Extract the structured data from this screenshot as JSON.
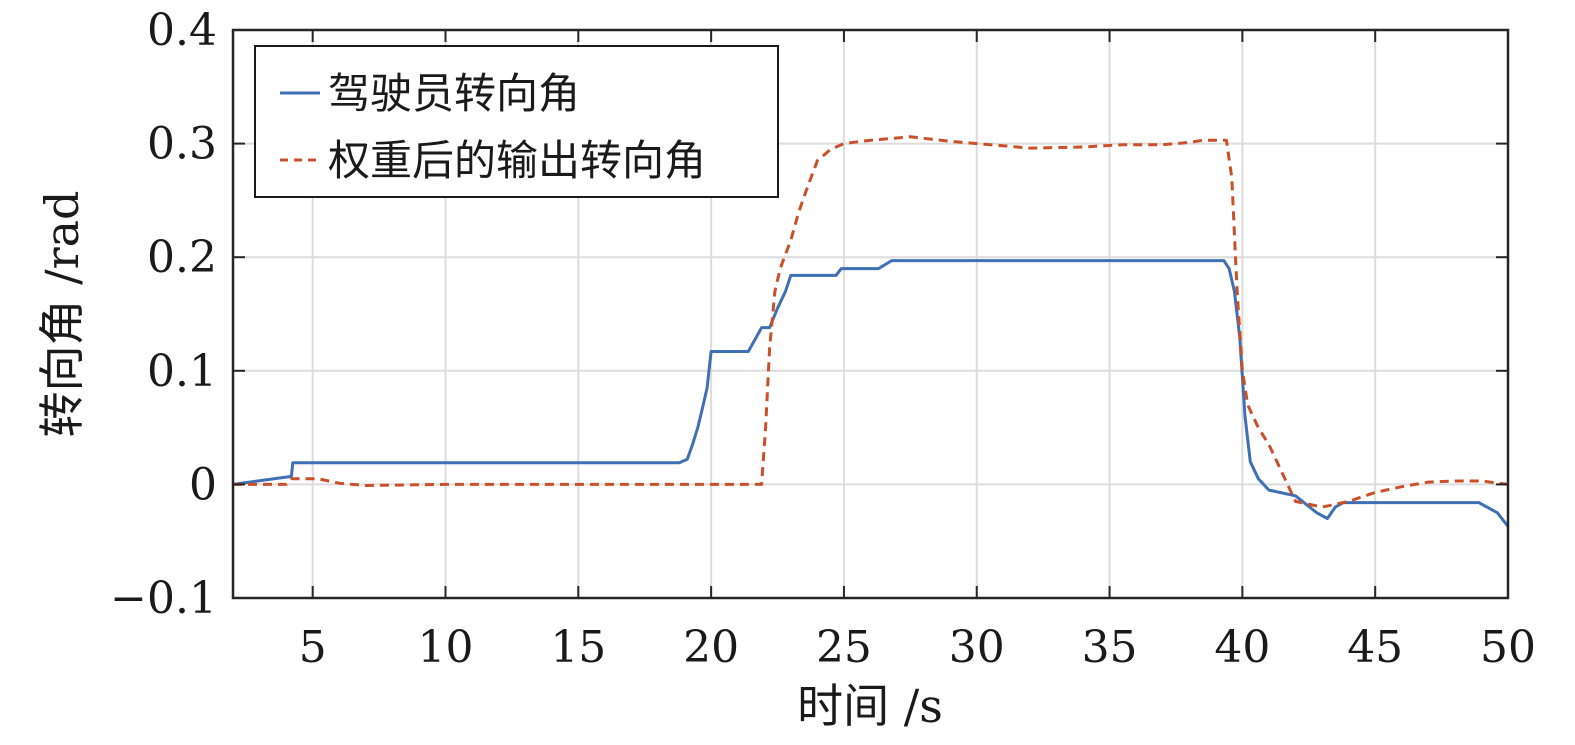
{
  "chart_data": {
    "type": "line",
    "xlabel": "时间 /s",
    "ylabel": "转向角 /rad",
    "xlim": [
      2,
      50
    ],
    "ylim": [
      -0.1,
      0.4
    ],
    "grid": true,
    "legend_position": "top-left",
    "xticks": [
      5,
      10,
      15,
      20,
      25,
      30,
      35,
      40,
      45,
      50
    ],
    "xtick_labels": [
      "5",
      "10",
      "15",
      "20",
      "25",
      "30",
      "35",
      "40",
      "45",
      "50"
    ],
    "yticks": [
      -0.1,
      0,
      0.1,
      0.2,
      0.3,
      0.4
    ],
    "ytick_labels": [
      "−0.1",
      "0",
      "0.1",
      "0.2",
      "0.3",
      "0.4"
    ],
    "series": [
      {
        "name": "驾驶员转向角",
        "color": "#3f6fb5",
        "dash": "solid",
        "x": [
          2,
          4.2,
          4.25,
          18.8,
          19.1,
          19.3,
          19.5,
          19.7,
          19.85,
          20,
          21.4,
          21.9,
          22.2,
          22.5,
          22.8,
          23,
          24.7,
          24.9,
          26.3,
          26.8,
          39.3,
          39.5,
          39.7,
          39.9,
          40.1,
          40.3,
          40.6,
          41,
          42,
          42.8,
          43.2,
          43.5,
          43.8,
          48.9,
          49.6,
          50
        ],
        "y": [
          0,
          0.007,
          0.019,
          0.019,
          0.022,
          0.035,
          0.05,
          0.07,
          0.085,
          0.117,
          0.117,
          0.138,
          0.138,
          0.155,
          0.17,
          0.184,
          0.184,
          0.19,
          0.19,
          0.197,
          0.197,
          0.19,
          0.17,
          0.13,
          0.06,
          0.02,
          0.005,
          -0.005,
          -0.01,
          -0.025,
          -0.03,
          -0.02,
          -0.016,
          -0.016,
          -0.025,
          -0.037
        ]
      },
      {
        "name": "权重后的输出转向角",
        "color": "#c9502a",
        "dash": "dashed",
        "x": [
          2,
          4,
          4.2,
          5.2,
          6,
          7,
          10,
          15,
          19,
          20,
          21,
          21.9,
          22.05,
          22.2,
          22.4,
          22.6,
          23,
          23.3,
          23.6,
          24,
          24.5,
          25,
          26,
          27.5,
          29,
          30.5,
          32,
          34,
          35.5,
          37,
          38,
          38.5,
          39.4,
          39.6,
          39.8,
          40,
          40.2,
          40.6,
          41,
          41.5,
          42,
          43,
          44,
          45,
          46,
          47,
          48,
          49,
          50
        ],
        "y": [
          0,
          0,
          0.005,
          0.005,
          0.001,
          -0.001,
          0,
          0,
          0,
          0,
          0,
          0,
          0.05,
          0.12,
          0.17,
          0.19,
          0.215,
          0.24,
          0.26,
          0.285,
          0.295,
          0.3,
          0.303,
          0.306,
          0.302,
          0.299,
          0.296,
          0.297,
          0.299,
          0.299,
          0.301,
          0.303,
          0.303,
          0.27,
          0.17,
          0.1,
          0.07,
          0.05,
          0.035,
          0.01,
          -0.015,
          -0.02,
          -0.015,
          -0.007,
          -0.002,
          0.002,
          0.003,
          0.003,
          0
        ]
      }
    ]
  }
}
